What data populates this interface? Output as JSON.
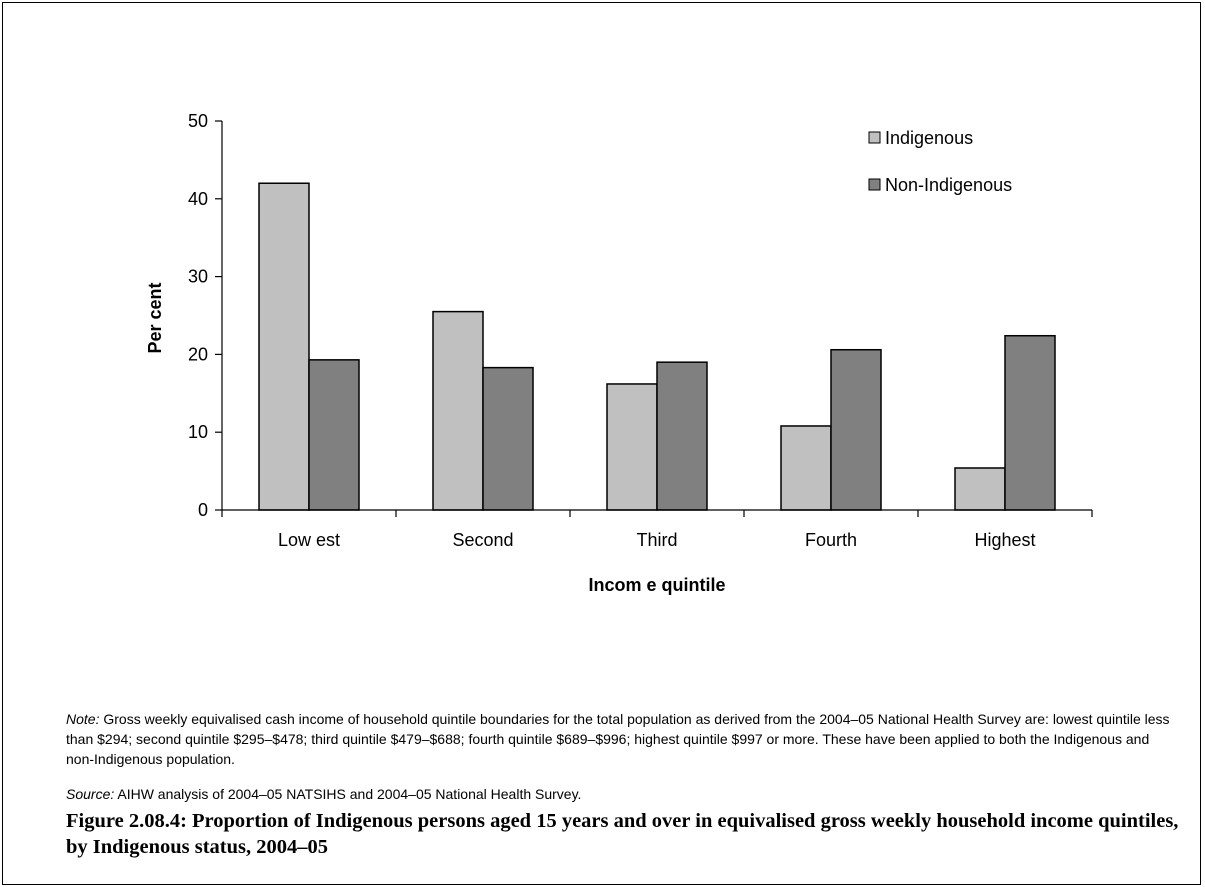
{
  "chart_data": {
    "type": "bar",
    "categories": [
      "Low est",
      "Second",
      "Third",
      "Fourth",
      "Highest"
    ],
    "series": [
      {
        "name": "Indigenous",
        "values": [
          42.0,
          25.5,
          16.2,
          10.8,
          5.4
        ],
        "color": "#c0c0c0"
      },
      {
        "name": "Non-Indigenous",
        "values": [
          19.3,
          18.3,
          19.0,
          20.6,
          22.4
        ],
        "color": "#808080"
      }
    ],
    "xlabel": "Incom e quintile",
    "ylabel": "Per cent",
    "ylim": [
      0,
      50
    ],
    "yticks": [
      0,
      10,
      20,
      30,
      40,
      50
    ],
    "grid": false,
    "legend": "top-right"
  },
  "notes": {
    "note_label": "Note:",
    "note_text": " Gross weekly equivalised cash income of household quintile boundaries for the total population as derived from the 2004–05 National Health Survey are: lowest quintile less than $294; second quintile $295–$478; third quintile $479–$688; fourth quintile $689–$996; highest quintile $997 or more. These have been applied to both the Indigenous and non-Indigenous population.",
    "source_label": "Source:",
    "source_text": " AIHW analysis of 2004–05 NATSIHS and 2004–05 National Health Survey."
  },
  "caption": "Figure 2.08.4: Proportion of Indigenous persons aged 15 years and over in equivalised gross weekly household income quintiles, by Indigenous status, 2004–05"
}
